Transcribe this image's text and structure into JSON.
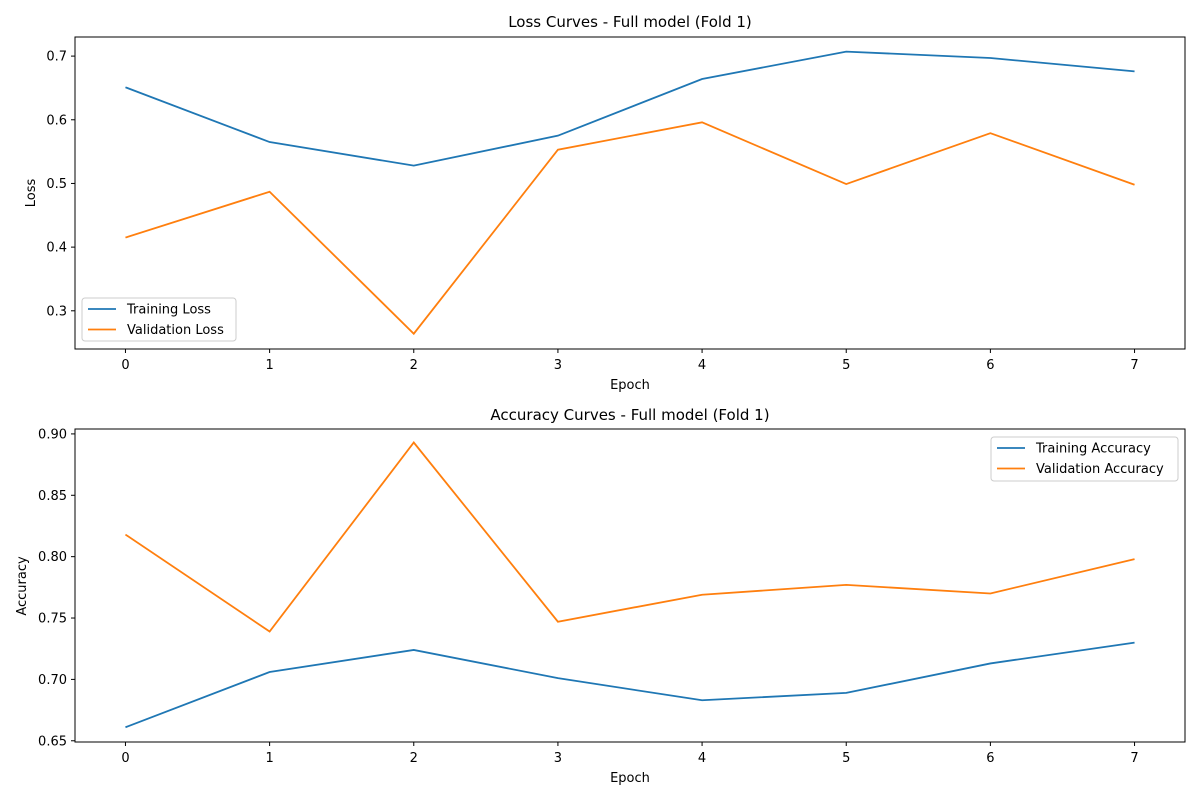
{
  "chart_data": [
    {
      "type": "line",
      "title": "Loss Curves - Full model (Fold 1)",
      "xlabel": "Epoch",
      "ylabel": "Loss",
      "x": [
        0,
        1,
        2,
        3,
        4,
        5,
        6,
        7
      ],
      "xticks": [
        "0",
        "1",
        "2",
        "3",
        "4",
        "5",
        "6",
        "7"
      ],
      "xlim": [
        -0.35,
        7.35
      ],
      "ylim": [
        0.24,
        0.73
      ],
      "yticks": [
        0.3,
        0.4,
        0.5,
        0.6,
        0.7
      ],
      "ytick_labels": [
        "0.3",
        "0.4",
        "0.5",
        "0.6",
        "0.7"
      ],
      "legend_position": "lower-left",
      "series": [
        {
          "name": "Training Loss",
          "color": "#1f77b4",
          "values": [
            0.651,
            0.565,
            0.528,
            0.575,
            0.664,
            0.707,
            0.697,
            0.676
          ]
        },
        {
          "name": "Validation Loss",
          "color": "#ff7f0e",
          "values": [
            0.415,
            0.487,
            0.264,
            0.553,
            0.596,
            0.499,
            0.579,
            0.498
          ]
        }
      ]
    },
    {
      "type": "line",
      "title": "Accuracy Curves - Full model (Fold 1)",
      "xlabel": "Epoch",
      "ylabel": "Accuracy",
      "x": [
        0,
        1,
        2,
        3,
        4,
        5,
        6,
        7
      ],
      "xticks": [
        "0",
        "1",
        "2",
        "3",
        "4",
        "5",
        "6",
        "7"
      ],
      "xlim": [
        -0.35,
        7.35
      ],
      "ylim": [
        0.649,
        0.904
      ],
      "yticks": [
        0.65,
        0.7,
        0.75,
        0.8,
        0.85,
        0.9
      ],
      "ytick_labels": [
        "0.65",
        "0.70",
        "0.75",
        "0.80",
        "0.85",
        "0.90"
      ],
      "legend_position": "upper-right",
      "series": [
        {
          "name": "Training Accuracy",
          "color": "#1f77b4",
          "values": [
            0.661,
            0.706,
            0.724,
            0.701,
            0.683,
            0.689,
            0.713,
            0.73
          ]
        },
        {
          "name": "Validation Accuracy",
          "color": "#ff7f0e",
          "values": [
            0.818,
            0.739,
            0.893,
            0.747,
            0.769,
            0.777,
            0.77,
            0.798
          ]
        }
      ]
    }
  ]
}
